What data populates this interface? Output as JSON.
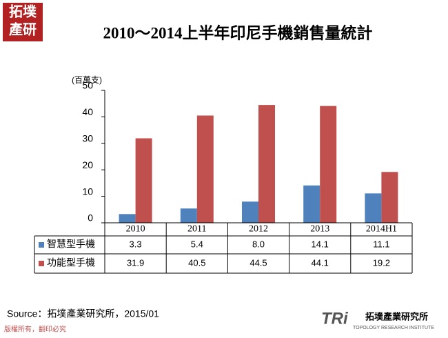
{
  "logo": {
    "top": "拓墣",
    "bottom": "產研"
  },
  "chart_data": {
    "type": "bar",
    "title": "2010～2014上半年印尼手機銷售量統計",
    "y_label": "(百萬支)",
    "categories": [
      "2010",
      "2011",
      "2012",
      "2013",
      "2014H1"
    ],
    "series": [
      {
        "name": "智慧型手機",
        "color": "#4f81bd",
        "values": [
          3.3,
          5.4,
          8.0,
          14.1,
          11.1
        ],
        "value_labels": [
          "3.3",
          "5.4",
          "8.0",
          "14.1",
          "11.1"
        ]
      },
      {
        "name": "功能型手機",
        "color": "#c0504d",
        "values": [
          31.9,
          40.5,
          44.5,
          44.1,
          19.2
        ],
        "value_labels": [
          "31.9",
          "40.5",
          "44.5",
          "44.1",
          "19.2"
        ]
      }
    ],
    "ylim": [
      0,
      50
    ],
    "yticks": [
      0,
      10,
      20,
      30,
      40,
      50
    ],
    "data_table": true
  },
  "source": "Source：拓墣產業研究所，2015/01",
  "footer": {
    "copyright": "版權所有，翻印必究",
    "brand": "TRi",
    "institute": "拓墣產業研究所",
    "institute_en": "TOPOLOGY RESEARCH INSTITUTE"
  }
}
